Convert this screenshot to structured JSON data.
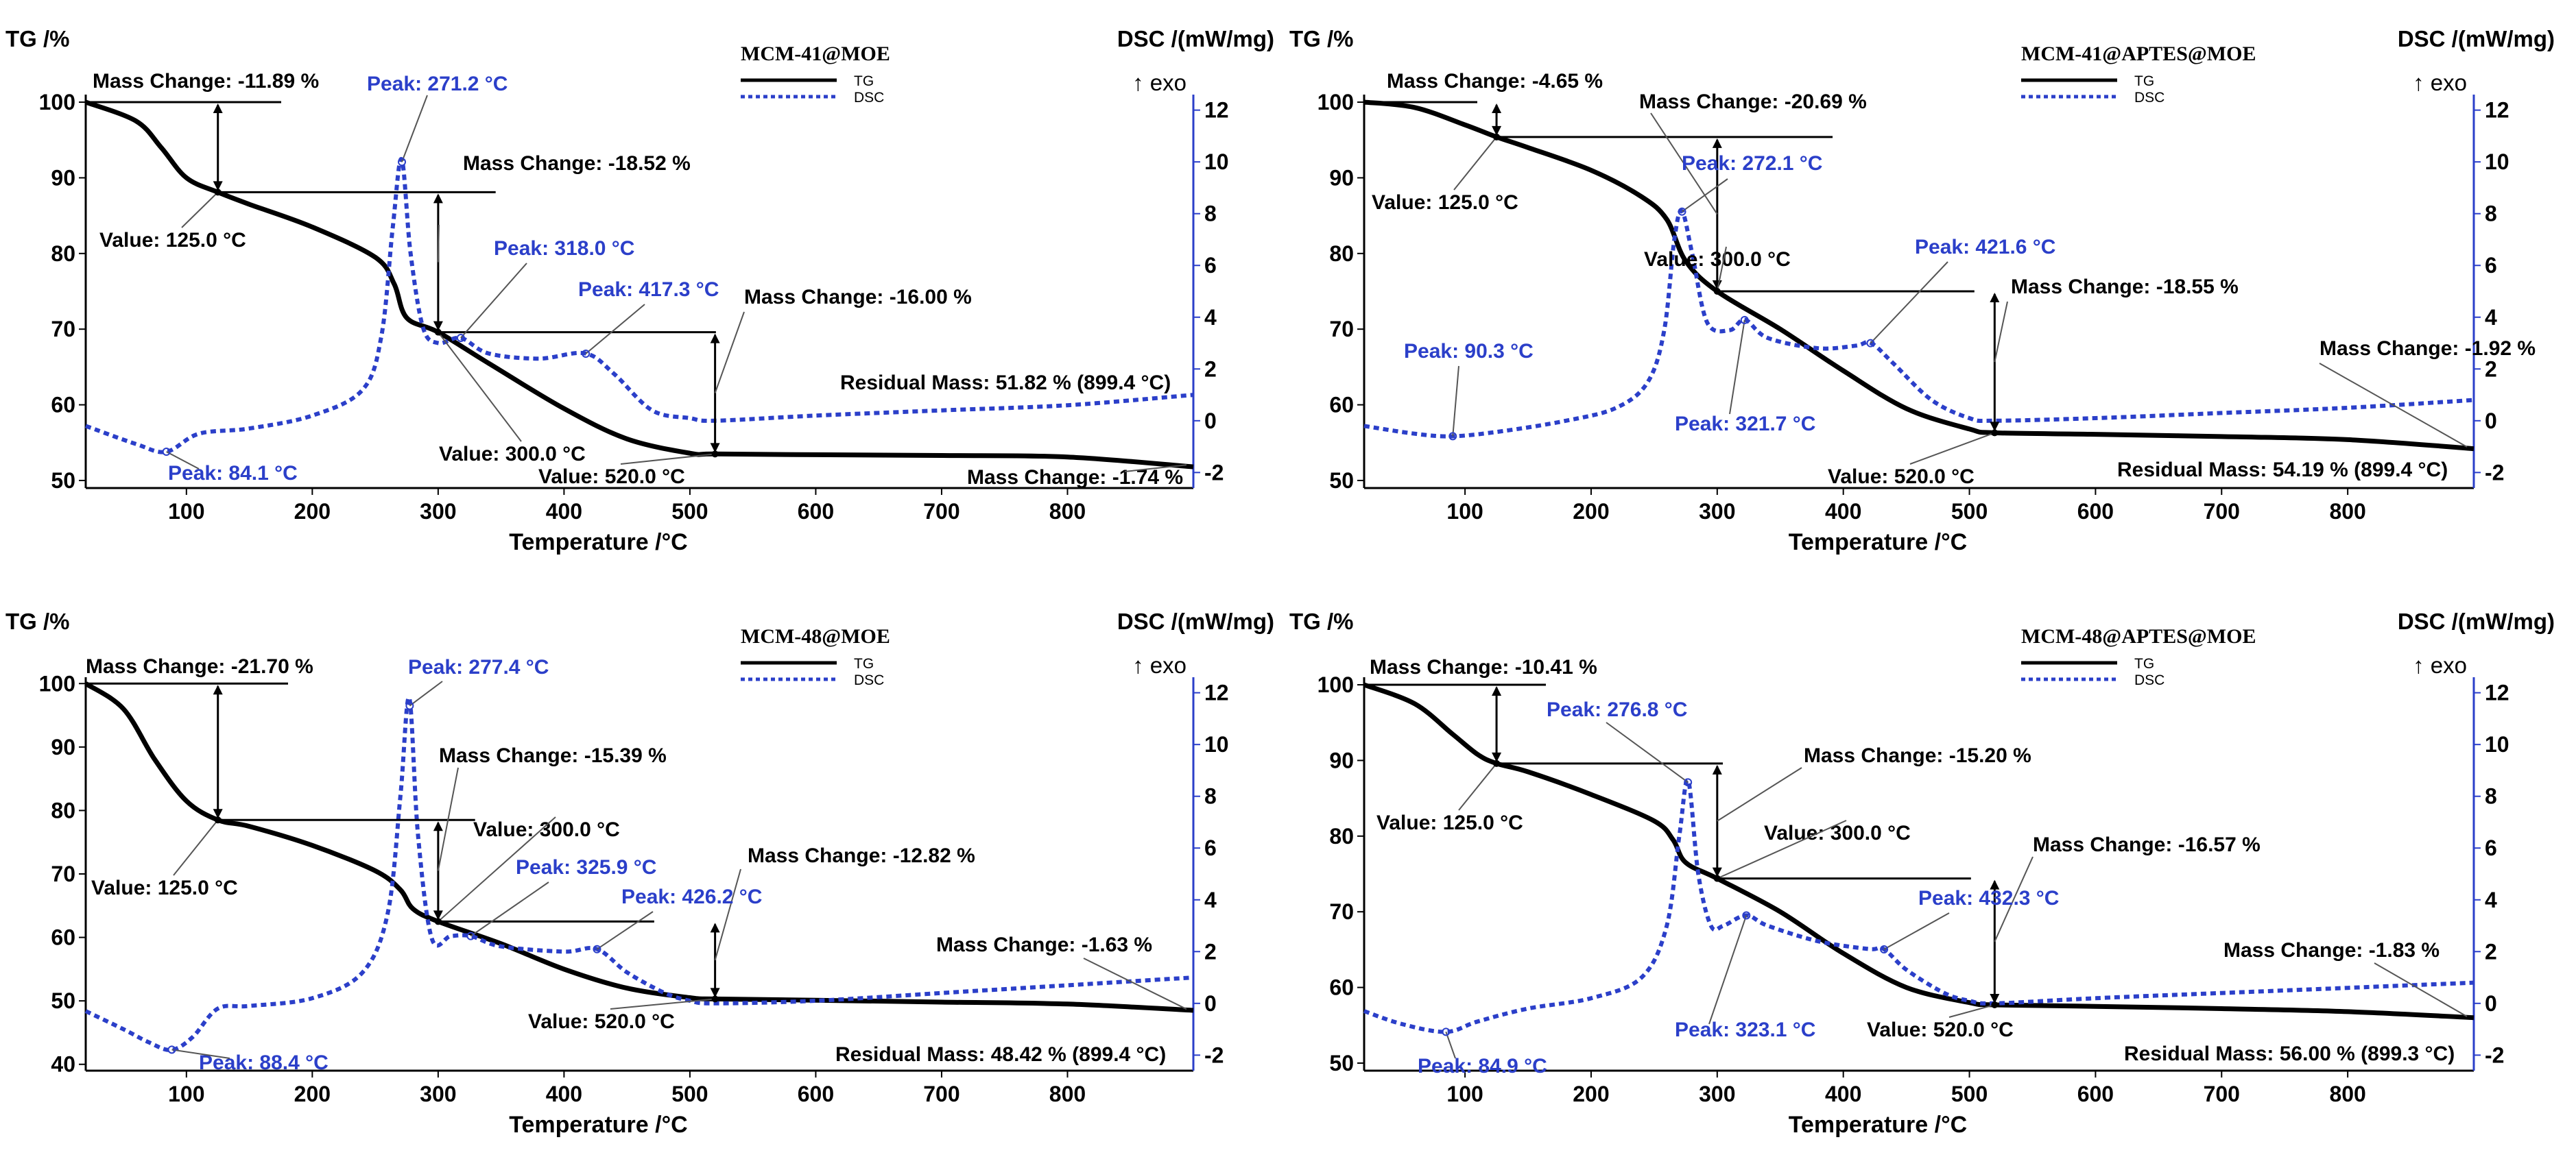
{
  "figure": {
    "tg_axis_title": "TG /%",
    "dsc_axis_title": "DSC /(mW/mg)",
    "exo_label": "↑ exo",
    "x_axis_title": "Temperature /°C",
    "legend_tg": "TG",
    "legend_dsc": "DSC",
    "colors": {
      "tg": "#000000",
      "dsc": "#2b3fc9",
      "text": "#000000"
    }
  },
  "chart_data": [
    {
      "type": "line",
      "title": "MCM-41@MOE",
      "xlabel": "Temperature /°C",
      "ylabel": "TG /%",
      "y2label": "DSC /(mW/mg)",
      "xlim": [
        20,
        900
      ],
      "ylim": [
        49,
        101
      ],
      "y2lim": [
        -2.6,
        12.6
      ],
      "xticks": [
        100,
        200,
        300,
        400,
        500,
        600,
        700,
        800
      ],
      "yticks": [
        50,
        60,
        70,
        80,
        90,
        100
      ],
      "y2ticks": [
        -2,
        0,
        2,
        4,
        6,
        8,
        10,
        12
      ],
      "series": [
        {
          "name": "TG",
          "axis": "left",
          "x": [
            20,
            60,
            80,
            100,
            125,
            150,
            200,
            250,
            265,
            275,
            300,
            340,
            400,
            450,
            500,
            520,
            600,
            700,
            800,
            900
          ],
          "y": [
            100,
            97.5,
            94,
            90,
            88.1,
            86.5,
            83.5,
            79.5,
            76,
            71.5,
            69.6,
            65.5,
            59.5,
            55.5,
            53.6,
            53.5,
            53.4,
            53.3,
            53.1,
            51.8
          ]
        },
        {
          "name": "DSC",
          "axis": "right",
          "x": [
            20,
            60,
            84,
            110,
            150,
            200,
            240,
            255,
            264,
            271,
            278,
            288,
            300,
            318,
            340,
            380,
            417,
            440,
            470,
            500,
            520,
            600,
            700,
            800,
            900
          ],
          "y": [
            -0.2,
            -0.9,
            -1.2,
            -0.5,
            -0.3,
            0.2,
            1.2,
            3.3,
            7.5,
            10.1,
            6.5,
            3.6,
            3.0,
            3.2,
            2.6,
            2.4,
            2.6,
            1.8,
            0.4,
            0.1,
            0,
            0.2,
            0.4,
            0.6,
            1.0
          ]
        }
      ],
      "annotations": [
        "Mass Change: -11.89 %",
        "Mass Change: -18.52 %",
        "Mass Change: -16.00 %",
        "Mass Change: -1.74 %",
        "Value: 125.0 °C",
        "Value: 300.0 °C",
        "Value: 520.0 °C",
        "Residual Mass: 51.82 % (899.4 °C)",
        "Peak: 271.2 °C",
        "Peak: 318.0 °C",
        "Peak: 417.3 °C",
        "Peak: 84.1 °C"
      ]
    },
    {
      "type": "line",
      "title": "MCM-41@APTES@MOE",
      "xlabel": "Temperature /°C",
      "ylabel": "TG /%",
      "y2label": "DSC /(mW/mg)",
      "xlim": [
        20,
        900
      ],
      "ylim": [
        49,
        101
      ],
      "y2lim": [
        -2.6,
        12.6
      ],
      "xticks": [
        100,
        200,
        300,
        400,
        500,
        600,
        700,
        800
      ],
      "yticks": [
        50,
        60,
        70,
        80,
        90,
        100
      ],
      "y2ticks": [
        -2,
        0,
        2,
        4,
        6,
        8,
        10,
        12
      ],
      "series": [
        {
          "name": "TG",
          "axis": "left",
          "x": [
            20,
            60,
            100,
            125,
            150,
            200,
            240,
            260,
            275,
            300,
            350,
            400,
            450,
            500,
            520,
            600,
            700,
            800,
            900
          ],
          "y": [
            100,
            99.3,
            97,
            95.4,
            94,
            91,
            87.5,
            84.5,
            79,
            75,
            70,
            64.5,
            59.5,
            56.8,
            56.3,
            56.1,
            55.8,
            55.4,
            54.2
          ]
        },
        {
          "name": "DSC",
          "axis": "right",
          "x": [
            20,
            60,
            90,
            130,
            180,
            220,
            245,
            258,
            266,
            272,
            280,
            292,
            310,
            322,
            340,
            380,
            410,
            422,
            440,
            470,
            500,
            520,
            600,
            700,
            800,
            900
          ],
          "y": [
            -0.2,
            -0.5,
            -0.6,
            -0.4,
            0,
            0.5,
            1.5,
            3.5,
            7.0,
            8.1,
            6.5,
            3.8,
            3.5,
            3.9,
            3.2,
            2.8,
            2.9,
            3.0,
            2.2,
            0.8,
            0.1,
            0,
            0.1,
            0.3,
            0.5,
            0.8
          ]
        }
      ],
      "annotations": [
        "Mass Change: -4.65 %",
        "Mass Change: -20.69 %",
        "Mass Change: -18.55 %",
        "Mass Change: -1.92 %",
        "Value: 125.0 °C",
        "Value: 300.0 °C",
        "Value: 520.0 °C",
        "Residual Mass: 54.19 % (899.4 °C)",
        "Peak: 272.1 °C",
        "Peak: 421.6 °C",
        "Peak: 90.3 °C",
        "Peak: 321.7 °C"
      ]
    },
    {
      "type": "line",
      "title": "MCM-48@MOE",
      "xlabel": "Temperature /°C",
      "ylabel": "TG /%",
      "y2label": "DSC /(mW/mg)",
      "xlim": [
        20,
        900
      ],
      "ylim": [
        39,
        101
      ],
      "y2lim": [
        -2.6,
        12.6
      ],
      "xticks": [
        100,
        200,
        300,
        400,
        500,
        600,
        700,
        800
      ],
      "yticks": [
        40,
        50,
        60,
        70,
        80,
        90,
        100
      ],
      "y2ticks": [
        -2,
        0,
        2,
        4,
        6,
        8,
        10,
        12
      ],
      "series": [
        {
          "name": "TG",
          "axis": "left",
          "x": [
            20,
            50,
            75,
            100,
            125,
            150,
            200,
            250,
            270,
            280,
            300,
            350,
            400,
            450,
            500,
            520,
            600,
            700,
            800,
            900
          ],
          "y": [
            100,
            96,
            88,
            81.5,
            78.5,
            77.5,
            74.5,
            70.5,
            67.5,
            64.5,
            62.5,
            59,
            55,
            52,
            50.5,
            50.3,
            50.1,
            49.8,
            49.5,
            48.5
          ]
        },
        {
          "name": "DSC",
          "axis": "right",
          "x": [
            20,
            50,
            70,
            88,
            105,
            125,
            150,
            200,
            240,
            260,
            270,
            277,
            284,
            295,
            310,
            326,
            350,
            400,
            426,
            450,
            480,
            500,
            520,
            600,
            700,
            800,
            900
          ],
          "y": [
            -0.3,
            -1.0,
            -1.5,
            -1.8,
            -1.3,
            -0.2,
            -0.1,
            0.2,
            1.2,
            3.5,
            8.0,
            11.8,
            6.5,
            2.5,
            2.6,
            2.6,
            2.2,
            2.0,
            2.1,
            1.2,
            0.4,
            0.1,
            0,
            0.1,
            0.4,
            0.7,
            1.0
          ]
        }
      ],
      "annotations": [
        "Mass Change: -21.70 %",
        "Mass Change: -15.39 %",
        "Mass Change: -12.82 %",
        "Mass Change: -1.63 %",
        "Value: 125.0 °C",
        "Value: 300.0 °C",
        "Value: 520.0 °C",
        "Residual Mass: 48.42 % (899.4 °C)",
        "Peak: 277.4 °C",
        "Peak: 325.9 °C",
        "Peak: 426.2 °C",
        "Peak: 88.4 °C"
      ]
    },
    {
      "type": "line",
      "title": "MCM-48@APTES@MOE",
      "xlabel": "Temperature /°C",
      "ylabel": "TG /%",
      "y2label": "DSC /(mW/mg)",
      "xlim": [
        20,
        900
      ],
      "ylim": [
        49,
        101
      ],
      "y2lim": [
        -2.6,
        12.6
      ],
      "xticks": [
        100,
        200,
        300,
        400,
        500,
        600,
        700,
        800
      ],
      "yticks": [
        50,
        60,
        70,
        80,
        90,
        100
      ],
      "y2ticks": [
        -2,
        0,
        2,
        4,
        6,
        8,
        10,
        12
      ],
      "series": [
        {
          "name": "TG",
          "axis": "left",
          "x": [
            20,
            60,
            90,
            110,
            125,
            150,
            200,
            250,
            265,
            275,
            300,
            350,
            400,
            450,
            500,
            520,
            600,
            700,
            800,
            900
          ],
          "y": [
            100,
            97.5,
            93.5,
            90.8,
            89.6,
            88.5,
            85.5,
            82,
            79.5,
            76.5,
            74.4,
            70,
            64.5,
            60,
            58,
            57.7,
            57.5,
            57.2,
            56.8,
            56.0
          ]
        },
        {
          "name": "DSC",
          "axis": "right",
          "x": [
            20,
            50,
            85,
            110,
            150,
            200,
            240,
            260,
            270,
            277,
            285,
            295,
            305,
            323,
            340,
            380,
            420,
            432,
            450,
            480,
            500,
            520,
            600,
            700,
            800,
            900
          ],
          "y": [
            -0.3,
            -0.8,
            -1.1,
            -0.7,
            -0.2,
            0.2,
            1.0,
            3.0,
            6.5,
            8.6,
            5.0,
            3.0,
            3.0,
            3.4,
            3.0,
            2.4,
            2.1,
            2.1,
            1.3,
            0.4,
            0.1,
            0,
            0.2,
            0.4,
            0.6,
            0.8
          ]
        }
      ],
      "annotations": [
        "Mass Change: -10.41 %",
        "Mass Change: -15.20 %",
        "Mass Change: -16.57 %",
        "Mass Change: -1.83 %",
        "Value: 125.0 °C",
        "Value: 300.0 °C",
        "Value: 520.0 °C",
        "Residual Mass: 56.00 % (899.3 °C)",
        "Peak: 276.8 °C",
        "Peak: 432.3 °C",
        "Peak: 84.9 °C",
        "Peak: 323.1 °C"
      ]
    }
  ]
}
